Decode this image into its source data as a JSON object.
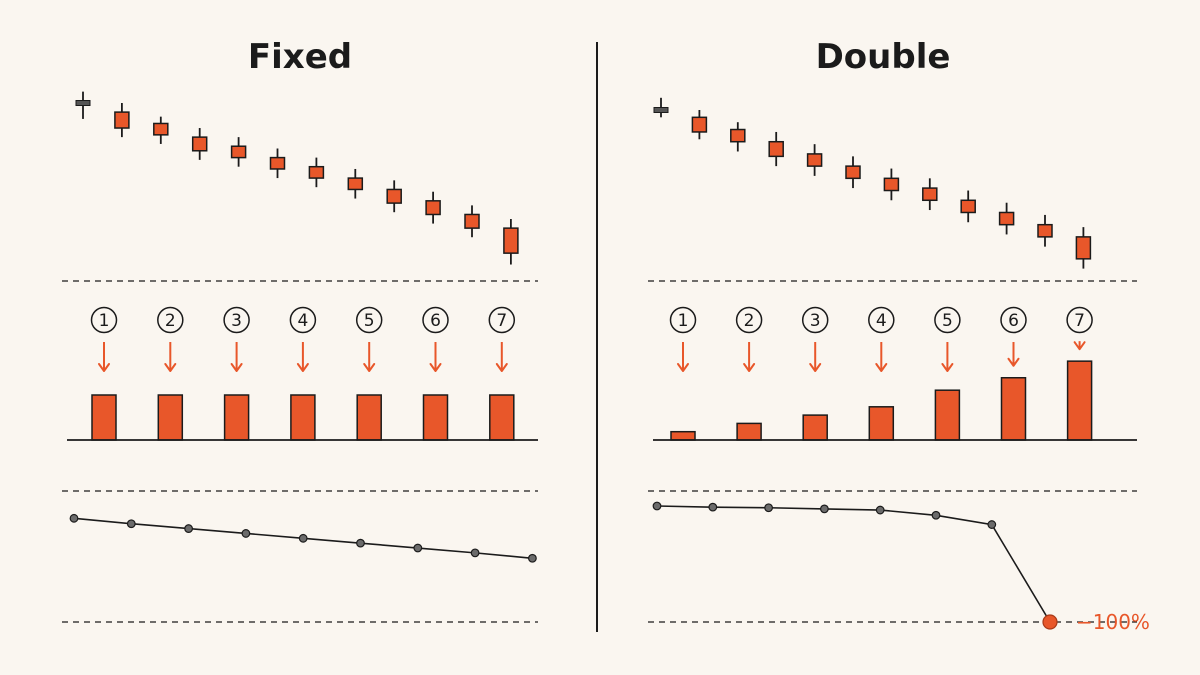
{
  "colors": {
    "background": "#faf6f0",
    "ink": "#1b1b1b",
    "accent": "#e8572a",
    "first_candle": "#555555",
    "point": "#6b6b6b"
  },
  "panels": [
    {
      "id": "fixed",
      "title": "Fixed",
      "step_labels": [
        "1",
        "2",
        "3",
        "4",
        "5",
        "6",
        "7"
      ],
      "candles": [
        {
          "open": 100.0,
          "close": 100.0,
          "high": 102.5,
          "low": 96.5,
          "neutral": true
        },
        {
          "open": 98.0,
          "close": 94.5,
          "high": 100.0,
          "low": 92.5
        },
        {
          "open": 95.5,
          "close": 93.0,
          "high": 97.0,
          "low": 91.0
        },
        {
          "open": 92.5,
          "close": 89.5,
          "high": 94.5,
          "low": 87.5
        },
        {
          "open": 90.5,
          "close": 88.0,
          "high": 92.5,
          "low": 86.0
        },
        {
          "open": 88.0,
          "close": 85.5,
          "high": 90.0,
          "low": 83.5
        },
        {
          "open": 86.0,
          "close": 83.5,
          "high": 88.0,
          "low": 81.5
        },
        {
          "open": 83.5,
          "close": 81.0,
          "high": 85.5,
          "low": 79.0
        },
        {
          "open": 81.0,
          "close": 78.0,
          "high": 83.0,
          "low": 76.0
        },
        {
          "open": 78.5,
          "close": 75.5,
          "high": 80.5,
          "low": 73.5
        },
        {
          "open": 75.5,
          "close": 72.5,
          "high": 77.5,
          "low": 70.5
        },
        {
          "open": 72.5,
          "close": 67.0,
          "high": 74.5,
          "low": 64.5
        }
      ],
      "bars": [
        1,
        1,
        1,
        1,
        1,
        1,
        1
      ],
      "equity": [
        96,
        91,
        86.5,
        82,
        77.5,
        73,
        68.5,
        64,
        59
      ],
      "end_label": ""
    },
    {
      "id": "double",
      "title": "Double",
      "step_labels": [
        "1",
        "2",
        "3",
        "4",
        "5",
        "6",
        "7"
      ],
      "candles": [
        {
          "open": 100.0,
          "close": 100.0,
          "high": 102.5,
          "low": 98.5,
          "neutral": true
        },
        {
          "open": 98.5,
          "close": 95.5,
          "high": 100.0,
          "low": 94.0
        },
        {
          "open": 96.0,
          "close": 93.5,
          "high": 97.5,
          "low": 91.5
        },
        {
          "open": 93.5,
          "close": 90.5,
          "high": 95.5,
          "low": 88.5
        },
        {
          "open": 91.0,
          "close": 88.5,
          "high": 93.0,
          "low": 86.5
        },
        {
          "open": 88.5,
          "close": 86.0,
          "high": 90.5,
          "low": 84.0
        },
        {
          "open": 86.0,
          "close": 83.5,
          "high": 88.0,
          "low": 81.5
        },
        {
          "open": 84.0,
          "close": 81.5,
          "high": 86.0,
          "low": 79.5
        },
        {
          "open": 81.5,
          "close": 79.0,
          "high": 83.5,
          "low": 77.0
        },
        {
          "open": 79.0,
          "close": 76.5,
          "high": 81.0,
          "low": 74.5
        },
        {
          "open": 76.5,
          "close": 74.0,
          "high": 78.5,
          "low": 72.0
        },
        {
          "open": 74.0,
          "close": 69.5,
          "high": 76.0,
          "low": 67.5
        }
      ],
      "bars": [
        1,
        2,
        3,
        4,
        6,
        7.5,
        9.5
      ],
      "equity": [
        100,
        99,
        98.5,
        97.5,
        96.5,
        92,
        84,
        0
      ],
      "end_label": "−100%"
    }
  ]
}
